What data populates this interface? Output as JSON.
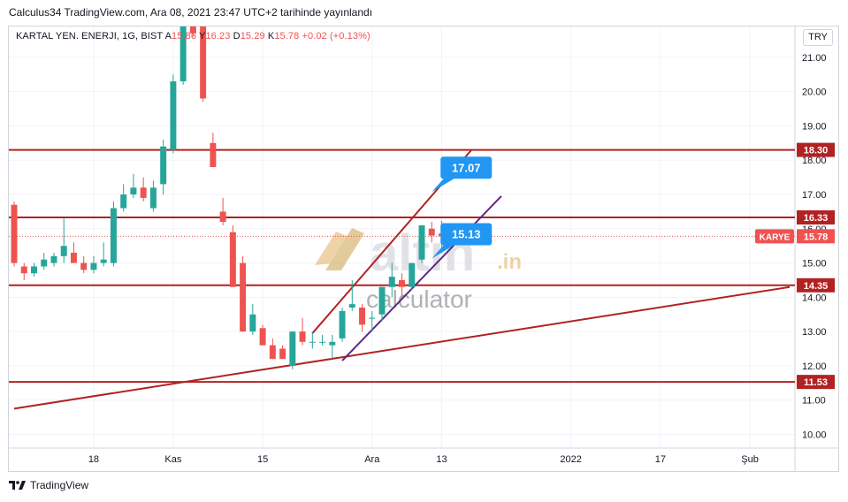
{
  "header": {
    "caption": "Calculus34 TradingView.com, Ara 08, 2021 23:47 UTC+2 tarihinde yayınlandı"
  },
  "legend": {
    "symbol": "KARTAL YEN. ENERJI, 1G, BIST",
    "open_label": "A",
    "open_value": "15.86",
    "high_label": "Y",
    "high_value": "16.23",
    "low_label": "D",
    "low_value": "15.29",
    "close_label": "K",
    "close_value": "15.78",
    "change": "+0.02 (+0.13%)"
  },
  "currency": "TRY",
  "footer": {
    "brand": "TradingView"
  },
  "colors": {
    "up": "#26a69a",
    "down": "#ef5350",
    "level": "#b22222",
    "channel_upper": "#c62828",
    "channel_lower": "#5b2a86",
    "callout": "#2196f3",
    "watermark_gold": "#e0b060",
    "watermark_grey": "#9aa0a6"
  },
  "chart_data": {
    "type": "candlestick",
    "ylim": [
      9.6,
      21.9
    ],
    "yticks": [
      10,
      11,
      12,
      13,
      14,
      15,
      16,
      17,
      18,
      19,
      20,
      21
    ],
    "ytick_labels": [
      "10.00",
      "11.00",
      "12.00",
      "13.00",
      "14.00",
      "15.00",
      "16.00",
      "17.00",
      "18.00",
      "19.00",
      "20.00",
      "21.00"
    ],
    "x_index_range": [
      0,
      78
    ],
    "xtick_labels": [
      {
        "i": 8,
        "label": "18"
      },
      {
        "i": 16,
        "label": "Kas"
      },
      {
        "i": 25,
        "label": "15"
      },
      {
        "i": 36,
        "label": "Ara"
      },
      {
        "i": 43,
        "label": "13"
      },
      {
        "i": 56,
        "label": "2022"
      },
      {
        "i": 65,
        "label": "17"
      },
      {
        "i": 74,
        "label": "Şub"
      }
    ],
    "candles": [
      [
        16.7,
        16.8,
        14.9,
        15.0
      ],
      [
        14.9,
        15.0,
        14.5,
        14.7
      ],
      [
        14.7,
        15.0,
        14.6,
        14.9
      ],
      [
        14.9,
        15.3,
        14.8,
        15.1
      ],
      [
        15.0,
        15.3,
        14.9,
        15.2
      ],
      [
        15.2,
        16.3,
        15.0,
        15.5
      ],
      [
        15.3,
        15.6,
        15.0,
        15.0
      ],
      [
        15.0,
        15.2,
        14.7,
        14.8
      ],
      [
        14.8,
        15.2,
        14.7,
        15.0
      ],
      [
        15.0,
        15.6,
        14.9,
        15.1
      ],
      [
        15.0,
        16.8,
        14.9,
        16.6
      ],
      [
        16.6,
        17.3,
        16.5,
        17.0
      ],
      [
        17.0,
        17.6,
        16.9,
        17.2
      ],
      [
        17.2,
        17.5,
        16.8,
        16.9
      ],
      [
        16.6,
        17.4,
        16.5,
        17.2
      ],
      [
        17.3,
        18.6,
        17.0,
        18.4
      ],
      [
        18.3,
        20.5,
        18.2,
        20.3
      ],
      [
        20.3,
        21.9,
        20.2,
        21.9
      ],
      [
        21.9,
        22.0,
        21.6,
        21.7
      ],
      [
        21.9,
        22.0,
        19.7,
        19.8
      ],
      [
        18.5,
        18.8,
        17.8,
        17.8
      ],
      [
        16.5,
        16.9,
        16.1,
        16.2
      ],
      [
        15.9,
        16.1,
        14.3,
        14.3
      ],
      [
        15.0,
        15.2,
        13.0,
        13.0
      ],
      [
        13.0,
        13.8,
        12.9,
        13.5
      ],
      [
        13.1,
        13.2,
        12.6,
        12.6
      ],
      [
        12.6,
        12.8,
        12.2,
        12.2
      ],
      [
        12.5,
        12.6,
        12.2,
        12.2
      ],
      [
        12.0,
        13.0,
        11.9,
        13.0
      ],
      [
        13.0,
        13.4,
        12.6,
        12.7
      ],
      [
        12.7,
        13.0,
        12.5,
        12.7
      ],
      [
        12.7,
        12.9,
        12.6,
        12.7
      ],
      [
        12.6,
        12.9,
        12.2,
        12.7
      ],
      [
        12.8,
        13.7,
        12.7,
        13.6
      ],
      [
        13.7,
        14.5,
        13.6,
        13.8
      ],
      [
        13.7,
        13.8,
        13.0,
        13.2
      ],
      [
        13.4,
        13.6,
        13.0,
        13.4
      ],
      [
        13.5,
        14.3,
        13.3,
        14.3
      ],
      [
        14.3,
        15.0,
        14.0,
        14.6
      ],
      [
        14.5,
        14.7,
        14.0,
        14.3
      ],
      [
        14.3,
        15.0,
        14.2,
        15.0
      ],
      [
        15.1,
        16.1,
        15.0,
        16.1
      ],
      [
        16.0,
        16.2,
        15.6,
        15.8
      ],
      [
        15.86,
        16.23,
        15.29,
        15.78
      ]
    ],
    "horizontal_levels": [
      18.3,
      16.33,
      14.35,
      11.53
    ],
    "level_labels": [
      "18.30",
      "16.33",
      "14.35",
      "11.53"
    ],
    "last_price_label": {
      "name": "KARYE",
      "value": "15.78",
      "price": 15.78
    },
    "trendlines": [
      {
        "name": "support",
        "from": [
          0,
          10.75
        ],
        "to": [
          78,
          14.3
        ]
      },
      {
        "name": "upper",
        "from": [
          30,
          12.95
        ],
        "to": [
          46,
          18.3
        ]
      },
      {
        "name": "lower",
        "from": [
          33,
          12.15
        ],
        "to": [
          49,
          16.95
        ]
      }
    ],
    "callouts": [
      {
        "text": "17.07",
        "anchor": [
          42,
          17.07
        ]
      },
      {
        "text": "15.13",
        "anchor": [
          42,
          15.13
        ]
      }
    ],
    "watermark": {
      "brand": "altın",
      "tld": ".in",
      "sub": "calculator"
    }
  }
}
